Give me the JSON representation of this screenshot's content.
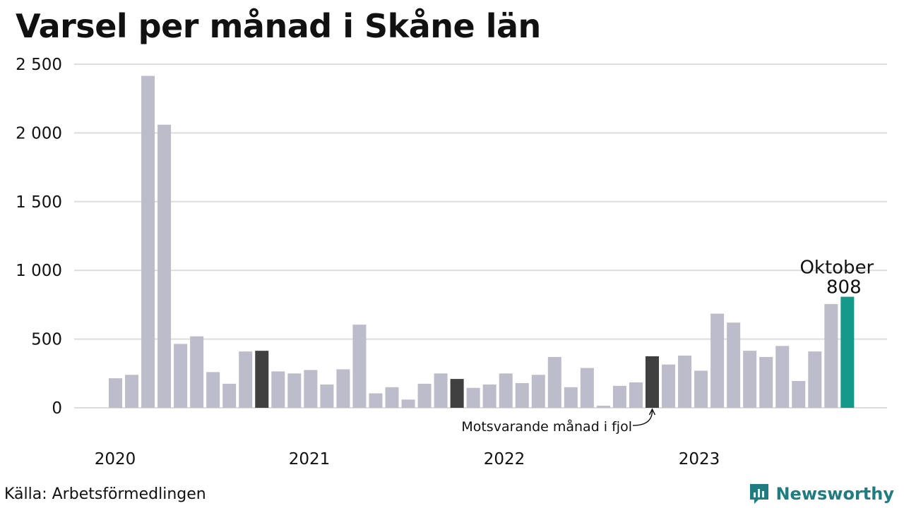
{
  "title": "Varsel per månad i Skåne län",
  "source": "Källa: Arbetsförmedlingen",
  "brand": "Newsworthy",
  "colors": {
    "bar": "#bdbccb",
    "highlight_previous": "#404040",
    "highlight_current": "#14998a",
    "grid": "#dddddd",
    "brand": "#1f7c80"
  },
  "chart_data": {
    "type": "bar",
    "x_ticks": [
      "2020",
      "2021",
      "2022",
      "2023"
    ],
    "y_ticks": [
      "2 500",
      "2 000",
      "1 500",
      "1 000",
      "500",
      "0"
    ],
    "ylim": [
      0,
      2500
    ],
    "grid": true,
    "values": [
      215,
      240,
      2415,
      2060,
      465,
      520,
      260,
      175,
      410,
      415,
      265,
      250,
      275,
      170,
      280,
      605,
      105,
      150,
      60,
      175,
      250,
      210,
      145,
      170,
      250,
      180,
      240,
      370,
      150,
      290,
      15,
      160,
      185,
      375,
      315,
      380,
      270,
      685,
      620,
      415,
      370,
      450,
      195,
      410,
      755,
      808
    ],
    "previous_year_index": [
      9,
      21,
      33
    ],
    "current_index": 45,
    "annotation_previous": "Motsvarande månad i fjol",
    "annotation_current_month": "Oktober",
    "annotation_current_value": "808"
  }
}
